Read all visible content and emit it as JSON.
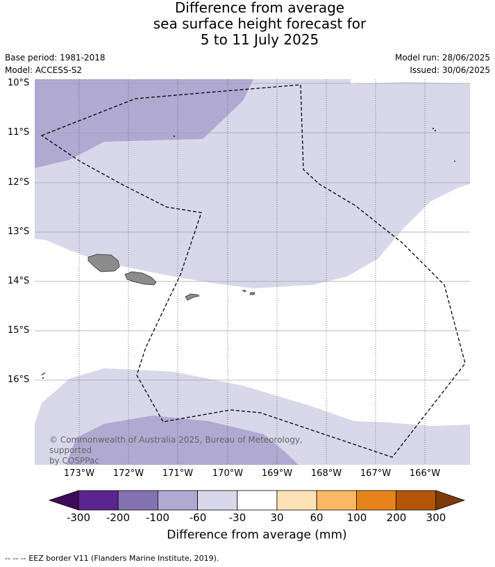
{
  "title": {
    "line1": "Difference from average",
    "line2": "sea surface height forecast for",
    "line3": "5 to 11 July 2025"
  },
  "meta_left": {
    "base_period": "Base period: 1981-2018",
    "model": "Model: ACCESS-S2"
  },
  "meta_right": {
    "model_run": "Model run: 28/06/2025",
    "issued": "Issued: 30/06/2025"
  },
  "latitude_labels": [
    "10°S",
    "11°S",
    "12°S",
    "13°S",
    "14°S",
    "15°S",
    "16°S"
  ],
  "longitude_labels": [
    "173°W",
    "172°W",
    "171°W",
    "170°W",
    "169°W",
    "168°W",
    "167°W",
    "166°W"
  ],
  "copyright": {
    "line1": "© Commonwealth of Australia 2025, Bureau of Meteorology, supported",
    "line2": "by COSPPac"
  },
  "colorbar": {
    "ticks": [
      "-300",
      "-200",
      "-100",
      "-60",
      "-30",
      "30",
      "60",
      "100",
      "200",
      "300"
    ],
    "colors": [
      "#3f0a5a",
      "#5b2590",
      "#8372b2",
      "#b0a9d1",
      "#d8d8ea",
      "#ffffff",
      "#fde2b7",
      "#fbb763",
      "#e6841b",
      "#b55607",
      "#7e3a0a"
    ],
    "label": "Difference from average (mm)"
  },
  "map_colors": {
    "band_minus_30_to_minus_60": "#d8d8ea",
    "band_minus_60_to_minus_100": "#b0a9d1",
    "land": "#8c8c8c",
    "eez_line": "#000000"
  },
  "footer": "--  --  -- EEZ border V11 (Flanders Marine Institute, 2019)."
}
